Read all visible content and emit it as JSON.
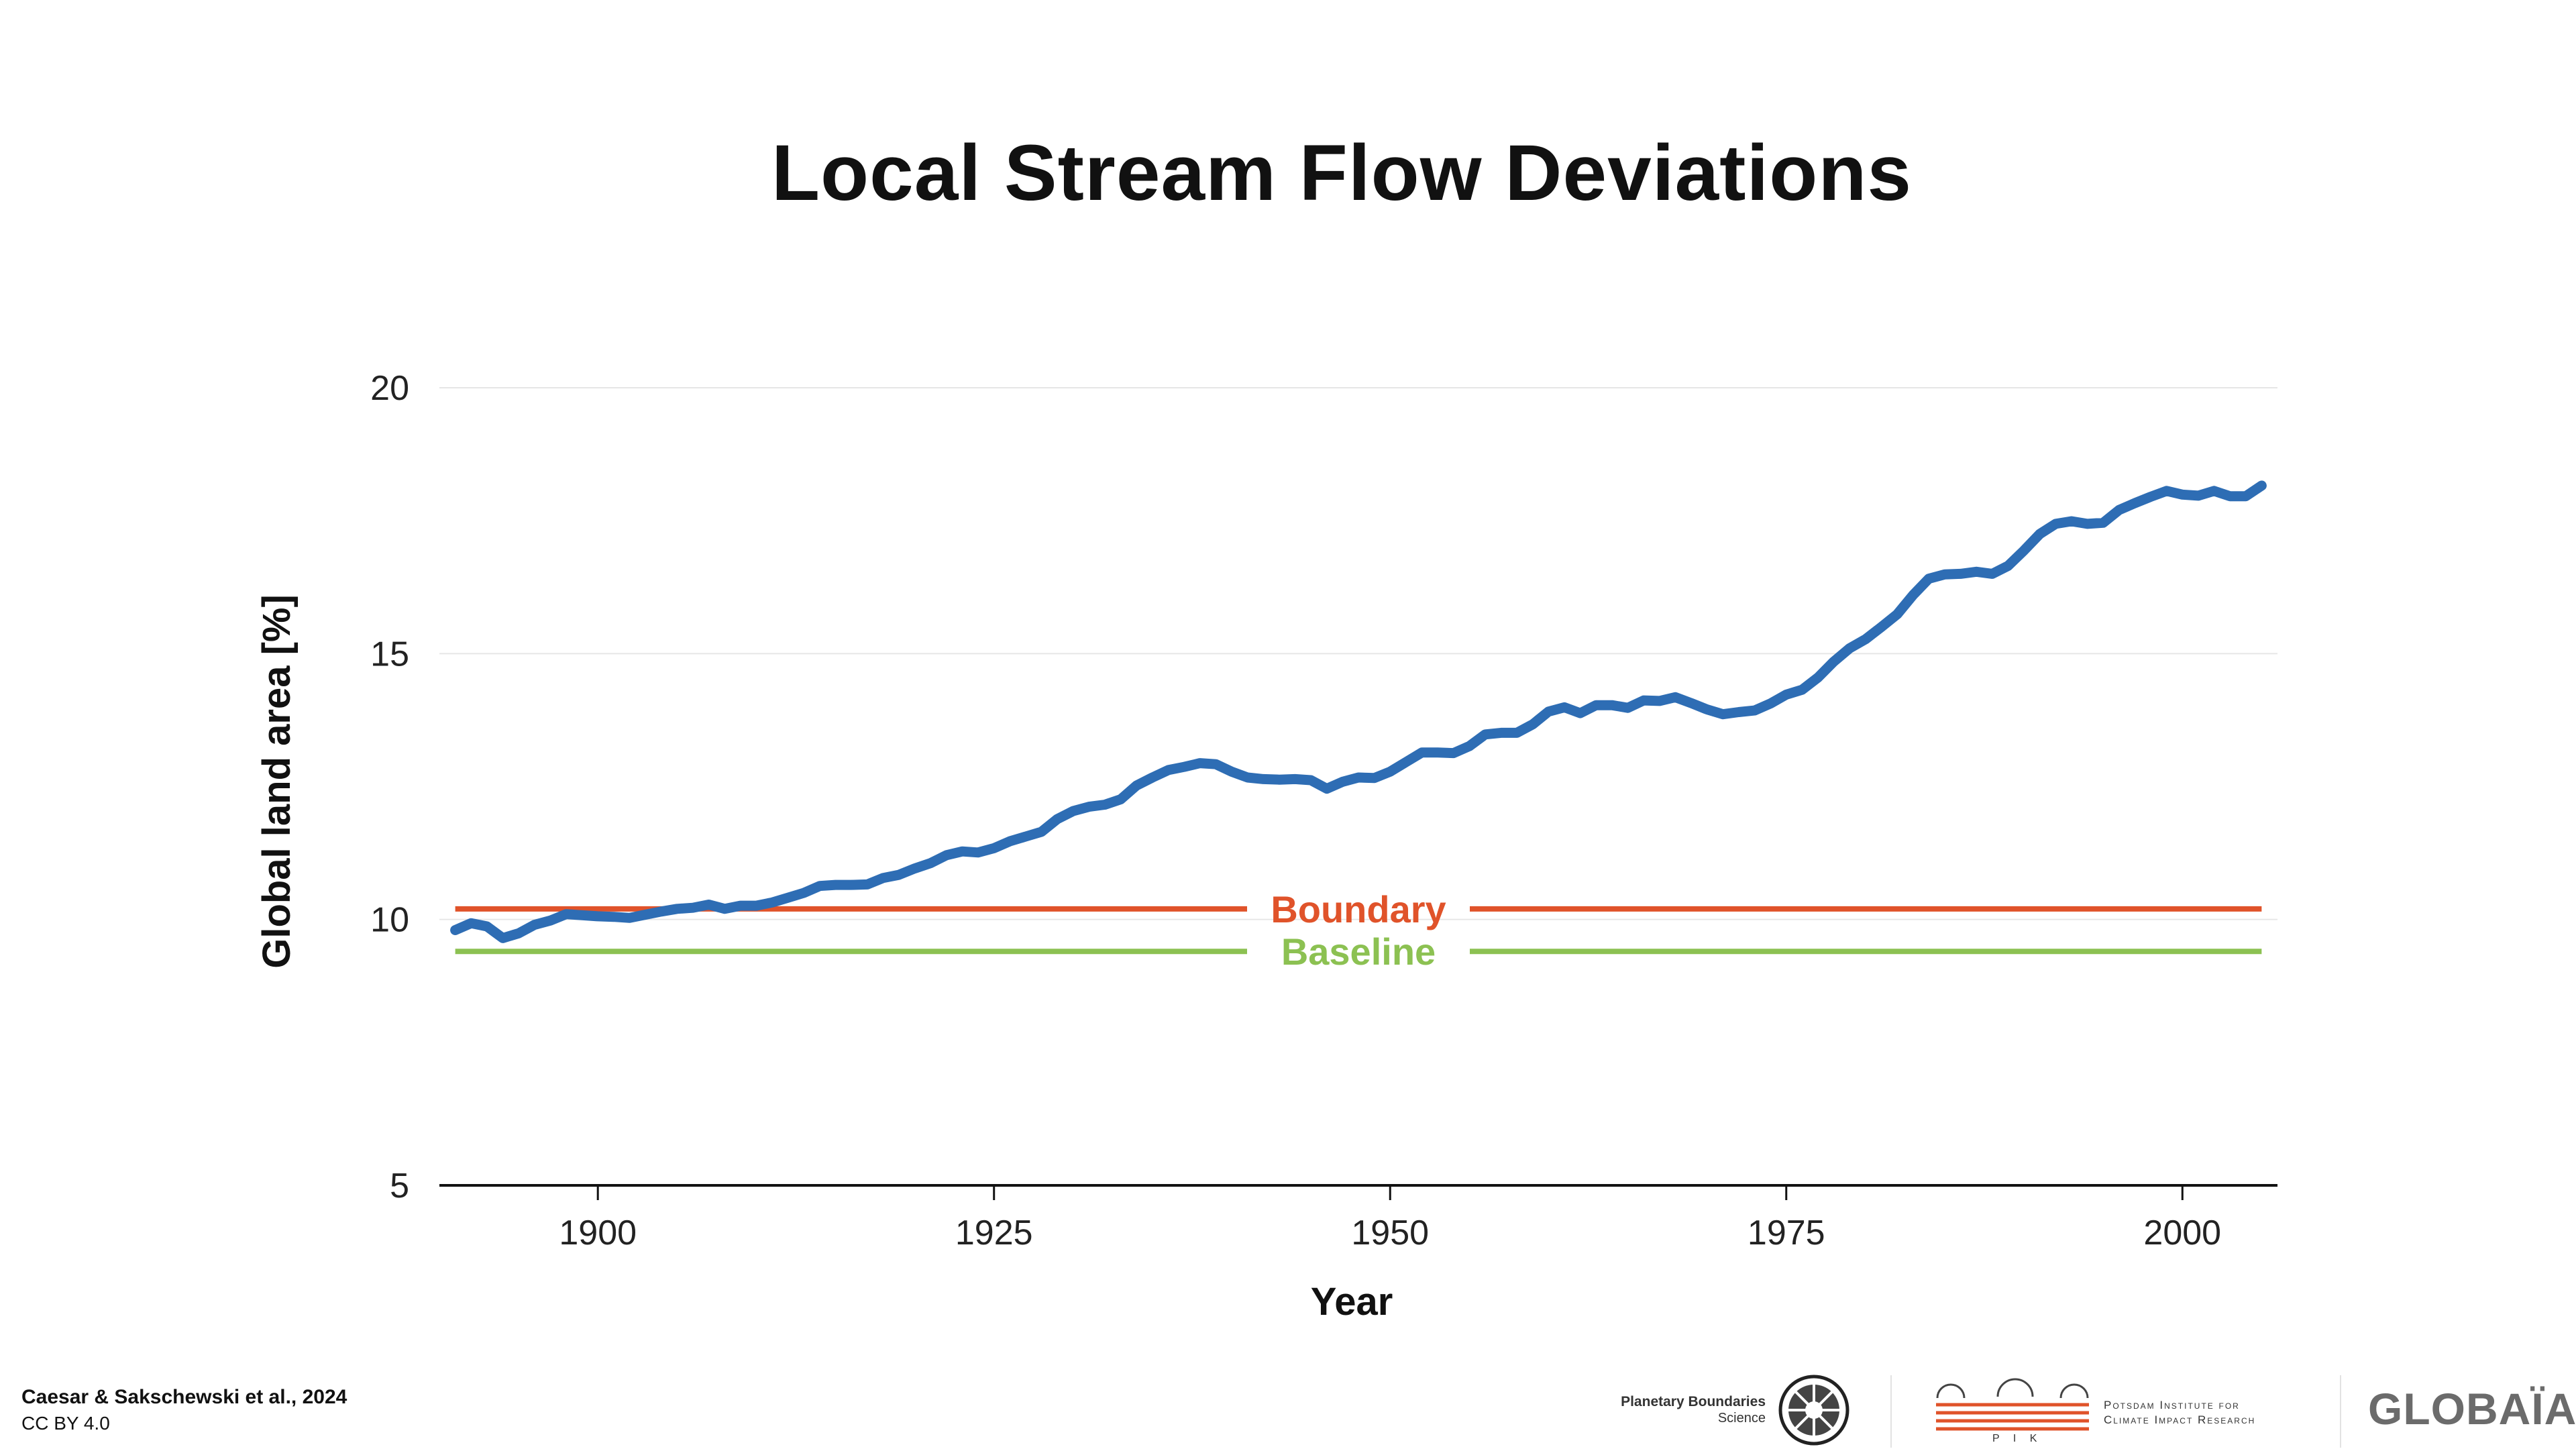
{
  "chart_data": {
    "type": "line",
    "title": "Local Stream Flow Deviations",
    "xlabel": "Year",
    "ylabel": "Global land area [%]",
    "xlim": [
      1890,
      2006
    ],
    "ylim": [
      5,
      20
    ],
    "xticks": [
      1900,
      1925,
      1950,
      1975,
      2000
    ],
    "yticks": [
      5,
      10,
      15,
      20
    ],
    "grid": true,
    "series": [
      {
        "color": "#2e6db4",
        "x": [
          1891,
          1892,
          1893,
          1894,
          1895,
          1896,
          1897,
          1898,
          1899,
          1900,
          1901,
          1902,
          1903,
          1904,
          1905,
          1906,
          1907,
          1908,
          1909,
          1910,
          1911,
          1912,
          1913,
          1914,
          1915,
          1916,
          1917,
          1918,
          1919,
          1920,
          1921,
          1922,
          1923,
          1924,
          1925,
          1926,
          1927,
          1928,
          1929,
          1930,
          1931,
          1932,
          1933,
          1934,
          1935,
          1936,
          1937,
          1938,
          1939,
          1940,
          1941,
          1942,
          1943,
          1944,
          1945,
          1946,
          1947,
          1948,
          1949,
          1950,
          1951,
          1952,
          1953,
          1954,
          1955,
          1956,
          1957,
          1958,
          1959,
          1960,
          1961,
          1962,
          1963,
          1964,
          1965,
          1966,
          1967,
          1968,
          1969,
          1970,
          1971,
          1972,
          1973,
          1974,
          1975,
          1976,
          1977,
          1978,
          1979,
          1980,
          1981,
          1982,
          1983,
          1984,
          1985,
          1986,
          1987,
          1988,
          1989,
          1990,
          1991,
          1992,
          1993,
          1994,
          1995,
          1996,
          1997,
          1998,
          1999,
          2000,
          2001,
          2002,
          2003,
          2004,
          2005
        ],
        "values": [
          9.8,
          9.93,
          9.87,
          9.65,
          9.74,
          9.9,
          9.98,
          10.1,
          10.08,
          10.06,
          10.05,
          10.03,
          10.09,
          10.15,
          10.2,
          10.22,
          10.28,
          10.2,
          10.26,
          10.26,
          10.32,
          10.41,
          10.5,
          10.63,
          10.65,
          10.65,
          10.66,
          10.78,
          10.84,
          10.96,
          11.06,
          11.21,
          11.28,
          11.26,
          11.34,
          11.47,
          11.56,
          11.65,
          11.89,
          12.04,
          12.12,
          12.16,
          12.26,
          12.52,
          12.67,
          12.81,
          12.87,
          12.94,
          12.92,
          12.78,
          12.67,
          12.64,
          12.63,
          12.64,
          12.62,
          12.46,
          12.59,
          12.67,
          12.66,
          12.78,
          12.96,
          13.14,
          13.14,
          13.13,
          13.26,
          13.48,
          13.51,
          13.51,
          13.67,
          13.91,
          13.99,
          13.88,
          14.03,
          14.03,
          13.98,
          14.12,
          14.11,
          14.18,
          14.07,
          13.95,
          13.86,
          13.9,
          13.93,
          14.06,
          14.23,
          14.32,
          14.55,
          14.85,
          15.1,
          15.27,
          15.5,
          15.74,
          16.1,
          16.41,
          16.49,
          16.5,
          16.54,
          16.5,
          16.65,
          16.94,
          17.25,
          17.44,
          17.49,
          17.44,
          17.46,
          17.7,
          17.83,
          17.95,
          18.06,
          17.99,
          17.97,
          18.06,
          17.96,
          17.96,
          18.16
        ]
      }
    ],
    "reference_lines": [
      {
        "label": "Boundary",
        "y": 10.2,
        "color": "#e0532a"
      },
      {
        "label": "Baseline",
        "y": 9.4,
        "color": "#8cc152"
      }
    ]
  },
  "footer": {
    "citation": "Caesar & Sakschewski et al., 2024",
    "license": "CC BY 4.0"
  },
  "logos": {
    "pbs_line1": "Planetary Boundaries",
    "pbs_line2": "Science",
    "pik_abbr": "P I K",
    "pik_line1": "Potsdam Institute for",
    "pik_line2": "Climate Impact Research",
    "globaia": "GLOBAÏA"
  }
}
